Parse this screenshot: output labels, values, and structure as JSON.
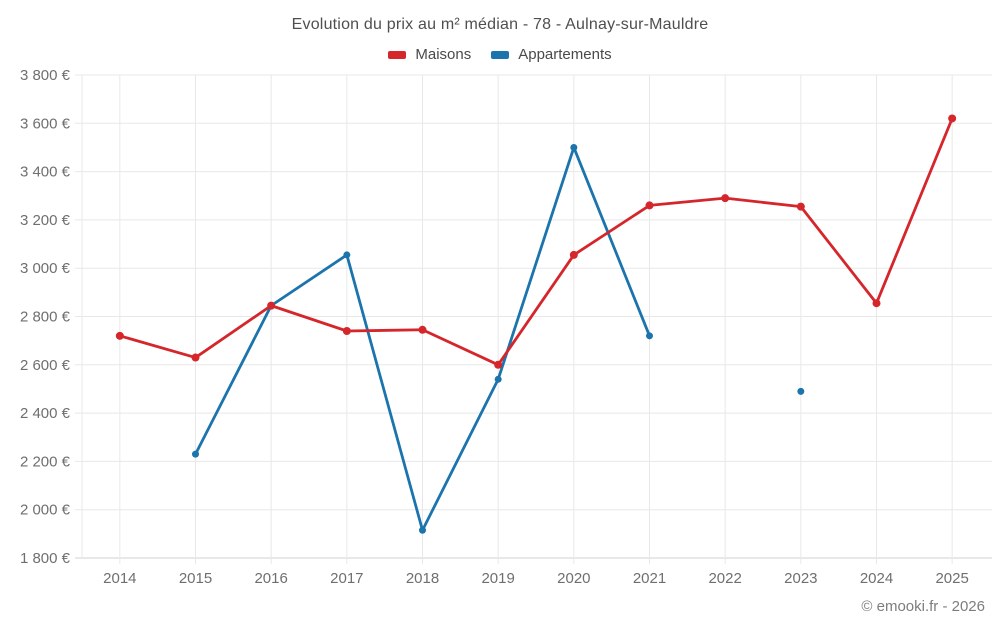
{
  "title": "Evolution du prix au m² médian - 78 - Aulnay-sur-Mauldre",
  "footer": "© emooki.fr - 2026",
  "legend": {
    "items": [
      {
        "label": "Maisons",
        "color": "#d5262c"
      },
      {
        "label": "Appartements",
        "color": "#1c74ad"
      }
    ]
  },
  "colors": {
    "grid": "#e8e8e8",
    "axis": "#d2d2d2",
    "title_text": "#4f4f4f",
    "tick_text": "#6f6f6f",
    "maisons_red": "#d5262c",
    "appartements_blue": "#1c74ad"
  },
  "chart_data": {
    "type": "line",
    "title": "Evolution du prix au m² médian - 78 - Aulnay-sur-Mauldre",
    "x": [
      "2014",
      "2015",
      "2016",
      "2017",
      "2018",
      "2019",
      "2020",
      "2021",
      "2022",
      "2023",
      "2024",
      "2025"
    ],
    "series": [
      {
        "name": "Maisons",
        "color": "#d5262c",
        "marker_radius": 4,
        "values": [
          2720,
          2630,
          2845,
          2740,
          2745,
          2600,
          3055,
          3260,
          3290,
          3255,
          2855,
          3620
        ]
      },
      {
        "name": "Appartements",
        "color": "#1c74ad",
        "marker_radius": 3.5,
        "values": [
          null,
          2230,
          2845,
          3055,
          1915,
          2540,
          3500,
          2720,
          null,
          2490,
          null,
          null
        ]
      }
    ],
    "xlabel": "",
    "ylabel": "",
    "ylim": [
      1800,
      3800
    ],
    "ytick_values": [
      1800,
      2000,
      2200,
      2400,
      2600,
      2800,
      3000,
      3200,
      3400,
      3600,
      3800
    ],
    "ytick_labels": [
      "1 800 €",
      "2 000 €",
      "2 200 €",
      "2 400 €",
      "2 600 €",
      "2 800 €",
      "3 000 €",
      "3 200 €",
      "3 400 €",
      "3 600 €",
      "3 800 €"
    ],
    "grid": true,
    "legend_position": "top"
  }
}
